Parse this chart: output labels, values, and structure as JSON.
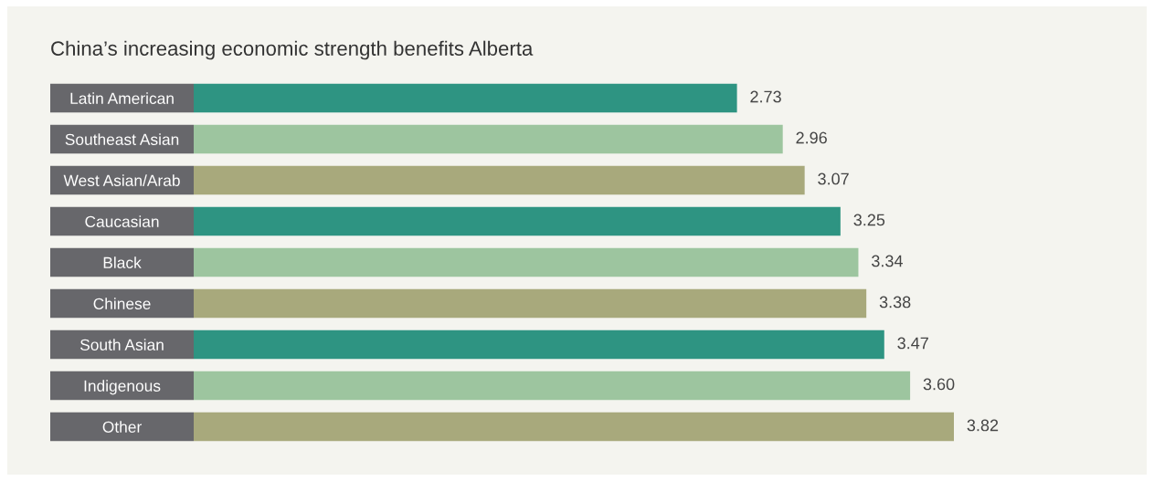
{
  "chart_data": {
    "type": "bar",
    "orientation": "horizontal",
    "title": "China’s increasing economic strength benefits Alberta",
    "categories": [
      "Latin American",
      "Southeast Asian",
      "West Asian/Arab",
      "Caucasian",
      "Black",
      "Chinese",
      "South Asian",
      "Indigenous",
      "Other"
    ],
    "values": [
      2.73,
      2.96,
      3.07,
      3.25,
      3.34,
      3.38,
      3.47,
      3.6,
      3.82
    ],
    "value_labels": [
      "2.73",
      "2.96",
      "3.07",
      "3.25",
      "3.34",
      "3.38",
      "3.47",
      "3.60",
      "3.82"
    ],
    "colors": [
      "#2e9482",
      "#9dc59f",
      "#a8a97c",
      "#2e9482",
      "#9dc59f",
      "#a8a97c",
      "#2e9482",
      "#9dc59f",
      "#a8a97c"
    ],
    "tick_labels": "y",
    "grid": false,
    "legend": false
  }
}
